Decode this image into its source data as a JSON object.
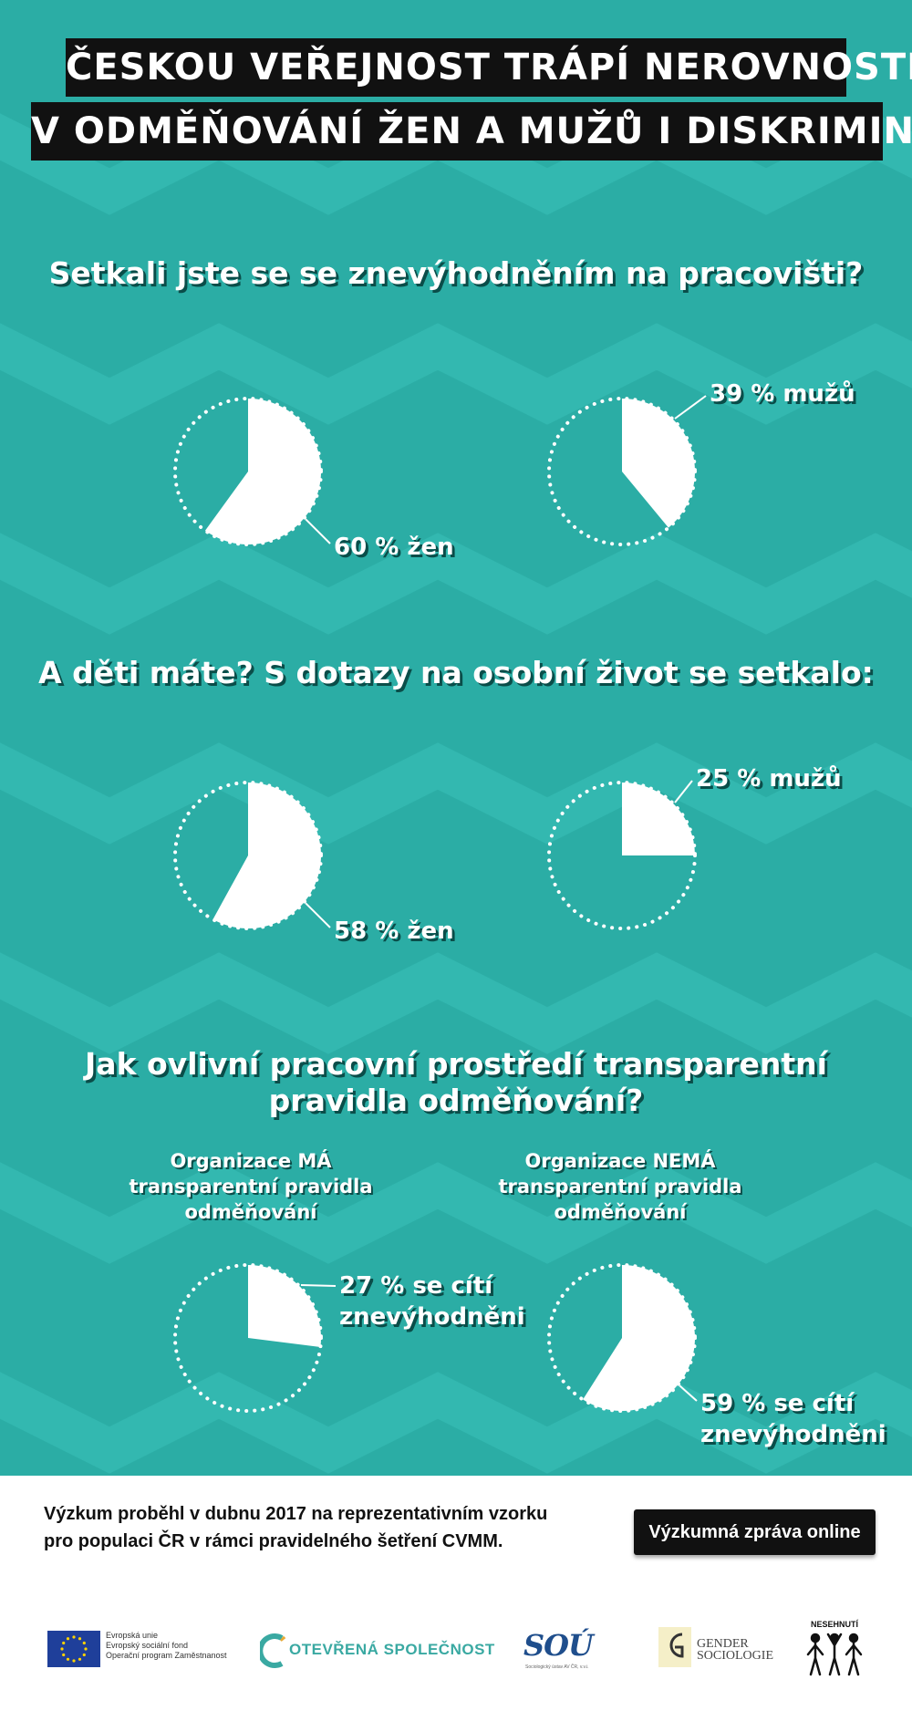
{
  "title": {
    "line1": "ČESKOU VEŘEJNOST TRÁPÍ NEROVNOSTI",
    "line2": "V ODMĚŇOVÁNÍ ŽEN A MUŽŮ I DISKRIMINACE"
  },
  "colors": {
    "background": "#2bada5",
    "zigzag": "#33b8b0",
    "slice": "#ffffff",
    "title_bar": "#111111",
    "text_shadow": "#0a4d49"
  },
  "chart_data": [
    {
      "type": "pie",
      "question": "Setkali jste se se znevýhodněním na pracovišti?",
      "slices": [
        {
          "label": "60 % žen",
          "value": 60
        },
        {
          "label": "39 % mužů",
          "value": 39
        }
      ]
    },
    {
      "type": "pie",
      "question": "A děti máte? S dotazy na osobní život se setkalo:",
      "slices": [
        {
          "label": "58 % žen",
          "value": 58
        },
        {
          "label": "25 % mužů",
          "value": 25
        }
      ]
    },
    {
      "type": "pie",
      "question": "Jak ovlivní pracovní prostředí transparentní pravidla odměňování?",
      "groups": [
        "Organizace MÁ transparentní pravidla odměňování",
        "Organizace NEMÁ transparentní pravidla odměňování"
      ],
      "slices": [
        {
          "label": "27 % se cítí znevýhodněni",
          "value": 27
        },
        {
          "label": "59 % se cítí znevýhodněni",
          "value": 59
        }
      ]
    }
  ],
  "questions": {
    "q1": "Setkali jste se se znevýhodněním na pracovišti?",
    "q2": "A děti máte? S dotazy na osobní život se setkalo:",
    "q3_line1": "Jak ovlivní pracovní prostředí transparentní",
    "q3_line2": "pravidla odměňování?"
  },
  "labels": {
    "p1": "60 % žen",
    "p2": "39 % mužů",
    "p3": "58 % žen",
    "p4": "25 % mužů",
    "p5_line1": "27 % se cítí",
    "p5_line2": "znevýhodněni",
    "p6_line1": "59 % se cítí",
    "p6_line2": "znevýhodněni"
  },
  "orgs": {
    "ma_line1": "Organizace MÁ",
    "ma_line2": "transparentní pravidla",
    "ma_line3": "odměňování",
    "nema_line1": "Organizace NEMÁ",
    "nema_line2": "transparentní pravidla",
    "nema_line3": "odměňování"
  },
  "footer": {
    "line1": "Výzkum proběhl v dubnu 2017 na reprezentativním vzorku",
    "line2": "pro populaci ČR v rámci pravidelného šetření CVMM.",
    "button": "Výzkumná zpráva online"
  },
  "logos": {
    "eu_line1": "Evropská unie",
    "eu_line2": "Evropský sociální fond",
    "eu_line3": "Operační program Zaměstnanost",
    "os": "OTEVŘENÁ SPOLEČNOST",
    "sou": "SOÚ",
    "sou_sub": "Sociologický ústav AV ČR, v.v.i.",
    "gs_line1": "GENDER",
    "gs_line2": "SOCIOLOGIE",
    "nh": "NESEHNUTÍ"
  }
}
